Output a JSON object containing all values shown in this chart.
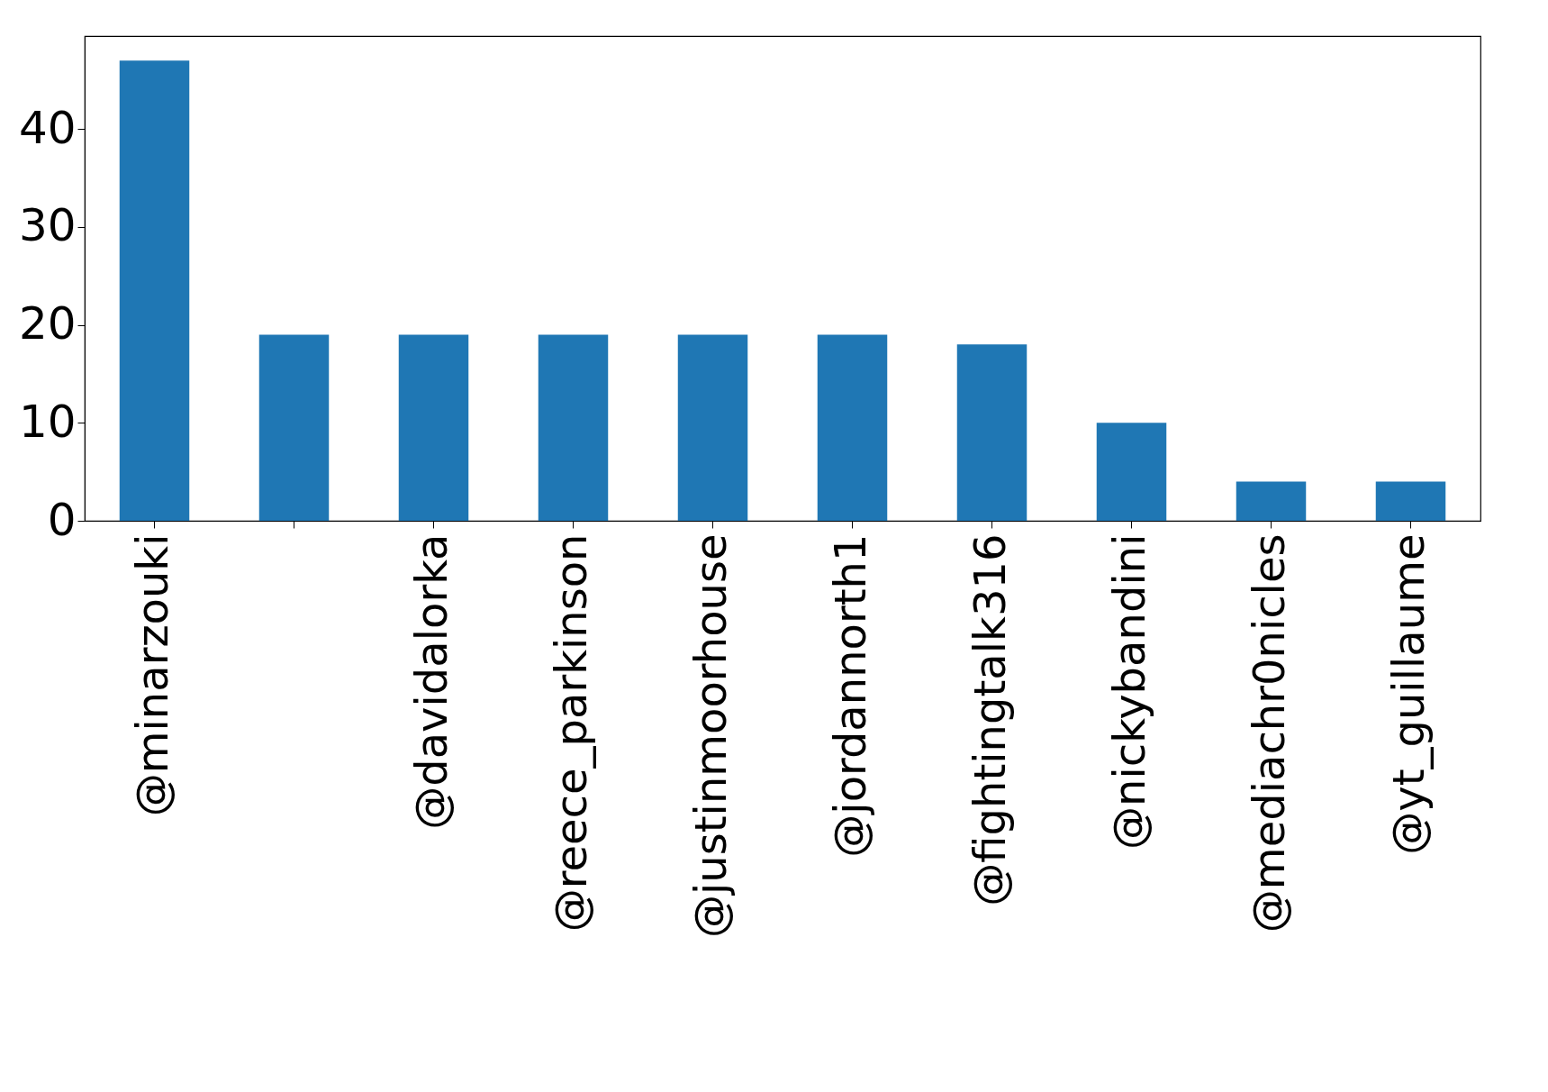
{
  "chart_data": {
    "type": "bar",
    "categories": [
      "@minarzouki",
      null,
      "@davidalorka",
      "@reece_parkinson",
      "@justinmoorhouse",
      "@jordannorth1",
      "@fightingtalk316",
      "@nickybandini",
      "@mediachr0nicles",
      "@yt_guillaume"
    ],
    "values": [
      47,
      19,
      19,
      19,
      19,
      19,
      18,
      10,
      4,
      4
    ],
    "color": "#1f77b4",
    "ylim": [
      0,
      49.5
    ],
    "yticks": [
      0,
      10,
      20,
      30,
      40
    ],
    "grid": false
  }
}
